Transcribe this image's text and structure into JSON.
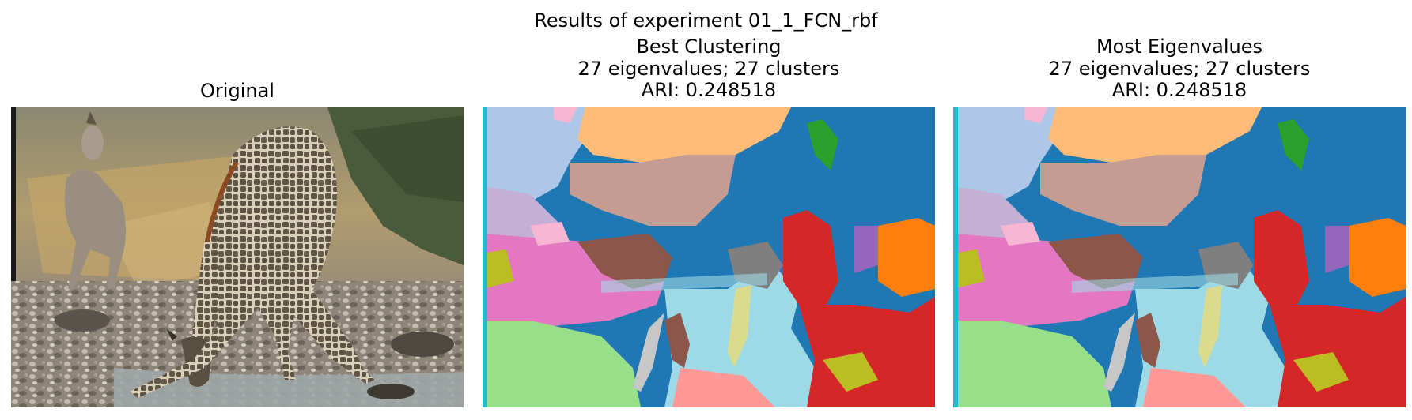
{
  "figure": {
    "suptitle": "Results of experiment 01_1_FCN_rbf"
  },
  "panels": [
    {
      "lines": [
        "Original"
      ]
    },
    {
      "lines": [
        "Best Clustering",
        "27 eigenvalues; 27 clusters",
        "ARI: 0.248518"
      ]
    },
    {
      "lines": [
        "Most Eigenvalues",
        "27 eigenvalues; 27 clusters",
        "ARI: 0.248518"
      ]
    }
  ],
  "palette": {
    "tab_blue": "#1f77b4",
    "tab_orange": "#ff7f0e",
    "tab_green": "#2ca02c",
    "tab_red": "#d62728",
    "tab_purple": "#9467bd",
    "tab_brown": "#8c564b",
    "tab_pink": "#e377c2",
    "tab_gray": "#7f7f7f",
    "tab_olive": "#bcbd22",
    "tab_cyan": "#9edae5",
    "light_blue": "#aec7e8",
    "light_orange": "#ffbb78",
    "light_green": "#98df8a",
    "light_red": "#ff9896",
    "light_purple": "#c5b0d5",
    "light_brown": "#c49c94",
    "light_pink": "#f7b6d2",
    "light_olive": "#dbdb8d",
    "teal": "#17becf"
  }
}
